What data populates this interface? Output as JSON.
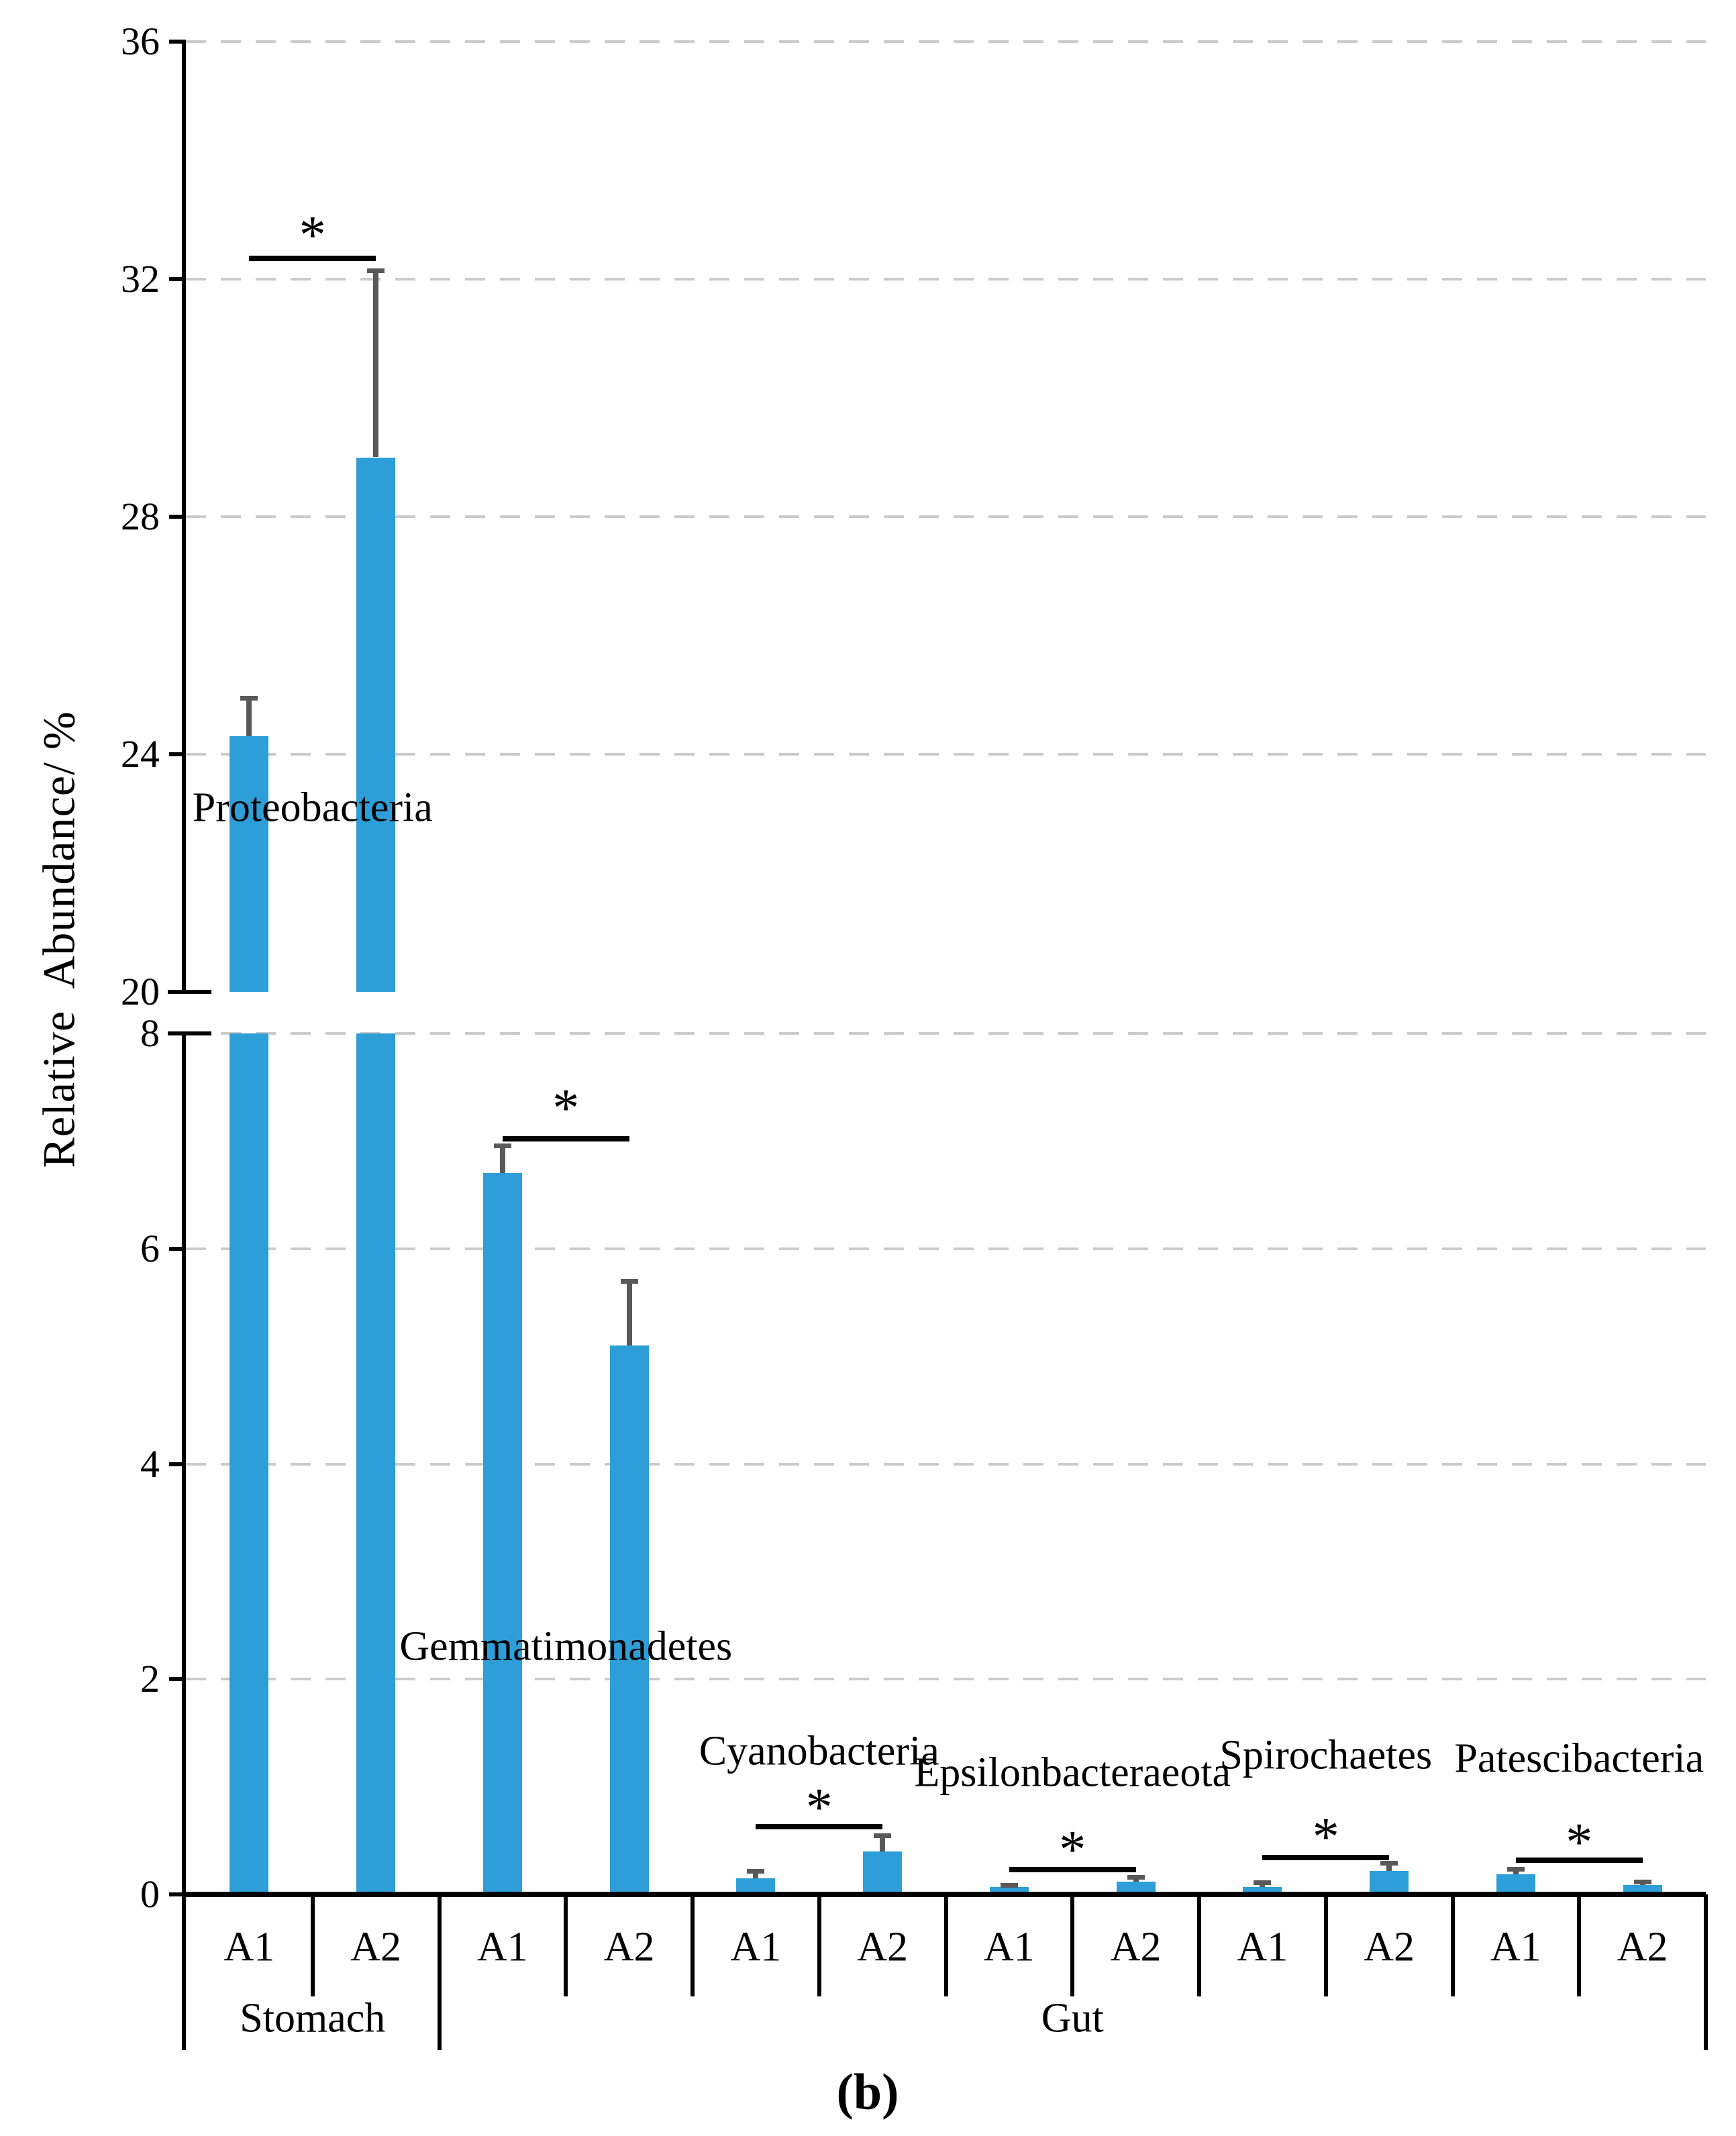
{
  "figure": {
    "caption": "(b)",
    "y_axis_title": "Relative  Abundance/ %"
  },
  "chart_data": {
    "type": "bar",
    "title": "",
    "ylabel": "Relative  Abundance/ %",
    "bar_color": "#2D9ED7",
    "error_bar_color": "#595959",
    "gridline_color": "#cbcbcb",
    "axis_color": "#000000",
    "grid": "dashed-horizontal",
    "legend_position": "none",
    "broken_y_axis": {
      "top_panel": {
        "ylim": [
          20,
          36
        ],
        "ticks": [
          20,
          24,
          28,
          32,
          36
        ],
        "gridlines": [
          24,
          28,
          32,
          36
        ]
      },
      "bottom_panel": {
        "ylim": [
          0,
          8
        ],
        "ticks": [
          0,
          2,
          4,
          6,
          8
        ],
        "gridlines": [
          2,
          4,
          6,
          8
        ]
      }
    },
    "x_axis": {
      "sample_labels": [
        "A1",
        "A2"
      ],
      "groups": [
        {
          "label": "Stomach",
          "phyla": [
            "Proteobacteria"
          ]
        },
        {
          "label": "Gut",
          "phyla": [
            "Gemmatimonadetes",
            "Cyanobacteria",
            "Epsilonbacteraeota",
            "Spirochaetes",
            "Patescibacteria"
          ]
        }
      ]
    },
    "phyla": [
      {
        "name": "Proteobacteria",
        "group": "Stomach",
        "label_y": 23.1,
        "label_panel": "top",
        "significance": {
          "symbol": "*",
          "bracket_y": 32.35,
          "symbol_y": 32.95,
          "panel": "top"
        },
        "bars": [
          {
            "sample": "A1",
            "value": 24.3,
            "error_plus": 0.65
          },
          {
            "sample": "A2",
            "value": 29.0,
            "error_plus": 3.15
          }
        ]
      },
      {
        "name": "Gemmatimonadetes",
        "group": "Gut",
        "label_y": 2.3,
        "label_panel": "bottom",
        "significance": {
          "symbol": "*",
          "bracket_y": 7.02,
          "symbol_y": 7.42,
          "panel": "bottom"
        },
        "bars": [
          {
            "sample": "A1",
            "value": 6.7,
            "error_plus": 0.26
          },
          {
            "sample": "A2",
            "value": 5.1,
            "error_plus": 0.6
          }
        ]
      },
      {
        "name": "Cyanobacteria",
        "group": "Gut",
        "label_y": 1.33,
        "label_panel": "bottom",
        "significance": {
          "symbol": "*",
          "bracket_y": 0.63,
          "symbol_y": 0.92,
          "panel": "bottom"
        },
        "bars": [
          {
            "sample": "A1",
            "value": 0.15,
            "error_plus": 0.07
          },
          {
            "sample": "A2",
            "value": 0.4,
            "error_plus": 0.15
          }
        ]
      },
      {
        "name": "Epsilonbacteraeota",
        "group": "Gut",
        "label_y": 1.13,
        "label_panel": "bottom",
        "significance": {
          "symbol": "*",
          "bracket_y": 0.23,
          "symbol_y": 0.53,
          "panel": "bottom"
        },
        "bars": [
          {
            "sample": "A1",
            "value": 0.07,
            "error_plus": 0.02
          },
          {
            "sample": "A2",
            "value": 0.12,
            "error_plus": 0.04
          }
        ]
      },
      {
        "name": "Spirochaetes",
        "group": "Gut",
        "label_y": 1.29,
        "label_panel": "bottom",
        "significance": {
          "symbol": "*",
          "bracket_y": 0.34,
          "symbol_y": 0.65,
          "panel": "bottom"
        },
        "bars": [
          {
            "sample": "A1",
            "value": 0.07,
            "error_plus": 0.04
          },
          {
            "sample": "A2",
            "value": 0.22,
            "error_plus": 0.07
          }
        ]
      },
      {
        "name": "Patescibacteria",
        "group": "Gut",
        "label_y": 1.26,
        "label_panel": "bottom",
        "significance": {
          "symbol": "*",
          "bracket_y": 0.32,
          "symbol_y": 0.6,
          "panel": "bottom"
        },
        "bars": [
          {
            "sample": "A1",
            "value": 0.19,
            "error_plus": 0.05
          },
          {
            "sample": "A2",
            "value": 0.09,
            "error_plus": 0.03
          }
        ]
      }
    ]
  }
}
